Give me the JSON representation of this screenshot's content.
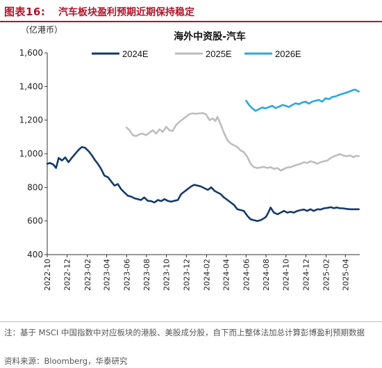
{
  "header": {
    "label": "图表16:",
    "title": "汽车板块盈利预期近期保持稳定"
  },
  "chart_data": {
    "type": "line",
    "title": "海外中资股-汽车",
    "ylabel": "（亿港币）",
    "ylim": [
      400,
      1600
    ],
    "yticks": [
      400,
      600,
      800,
      1000,
      1200,
      1400,
      1600
    ],
    "ytick_labels": [
      "400",
      "600",
      "800",
      "1,000",
      "1,200",
      "1,400",
      "1,600"
    ],
    "xlim": [
      "2022-10-01",
      "2025-05-15"
    ],
    "xticks": [
      "2022-10",
      "2022-12",
      "2023-02",
      "2023-04",
      "2023-06",
      "2023-08",
      "2023-10",
      "2023-12",
      "2024-02",
      "2024-04",
      "2024-06",
      "2024-08",
      "2024-10",
      "2024-12",
      "2025-02",
      "2025-04"
    ],
    "grid": false,
    "legend": "top",
    "series": [
      {
        "name": "2024E",
        "color": "#13386e",
        "x": [
          "2022-10-01",
          "2022-10-10",
          "2022-10-20",
          "2022-10-28",
          "2022-11-05",
          "2022-11-15",
          "2022-11-25",
          "2022-12-05",
          "2022-12-15",
          "2022-12-28",
          "2023-01-06",
          "2023-01-15",
          "2023-01-25",
          "2023-02-05",
          "2023-02-15",
          "2023-02-25",
          "2023-03-05",
          "2023-03-15",
          "2023-03-25",
          "2023-04-05",
          "2023-04-15",
          "2023-04-25",
          "2023-05-05",
          "2023-05-15",
          "2023-05-25",
          "2023-06-05",
          "2023-06-15",
          "2023-06-25",
          "2023-07-05",
          "2023-07-15",
          "2023-07-25",
          "2023-08-05",
          "2023-08-15",
          "2023-08-25",
          "2023-09-05",
          "2023-09-15",
          "2023-09-25",
          "2023-10-05",
          "2023-10-15",
          "2023-10-25",
          "2023-11-05",
          "2023-11-15",
          "2023-11-25",
          "2023-12-05",
          "2023-12-15",
          "2023-12-25",
          "2024-01-05",
          "2024-01-15",
          "2024-01-25",
          "2024-02-05",
          "2024-02-15",
          "2024-02-25",
          "2024-03-05",
          "2024-03-15",
          "2024-03-25",
          "2024-04-05",
          "2024-04-15",
          "2024-04-25",
          "2024-05-05",
          "2024-05-15",
          "2024-05-25",
          "2024-06-05",
          "2024-06-15",
          "2024-06-25",
          "2024-07-05",
          "2024-07-15",
          "2024-07-25",
          "2024-08-01",
          "2024-08-08",
          "2024-08-15",
          "2024-08-25",
          "2024-09-05",
          "2024-09-15",
          "2024-09-25",
          "2024-10-05",
          "2024-10-15",
          "2024-10-25",
          "2024-11-05",
          "2024-11-15",
          "2024-11-25",
          "2024-12-05",
          "2024-12-15",
          "2024-12-25",
          "2025-01-05",
          "2025-01-15",
          "2025-01-25",
          "2025-02-05",
          "2025-02-15",
          "2025-02-25",
          "2025-03-05",
          "2025-03-15",
          "2025-03-25",
          "2025-04-05",
          "2025-04-15",
          "2025-04-25",
          "2025-05-05",
          "2025-05-12"
        ],
        "values": [
          940,
          945,
          935,
          915,
          975,
          960,
          978,
          950,
          975,
          1005,
          1025,
          1040,
          1035,
          1015,
          990,
          960,
          940,
          910,
          870,
          860,
          835,
          810,
          820,
          790,
          770,
          750,
          745,
          735,
          730,
          725,
          740,
          720,
          718,
          710,
          725,
          718,
          730,
          720,
          715,
          720,
          725,
          760,
          775,
          790,
          805,
          815,
          810,
          805,
          795,
          785,
          800,
          780,
          770,
          760,
          740,
          725,
          710,
          695,
          670,
          665,
          660,
          630,
          610,
          605,
          600,
          605,
          615,
          625,
          650,
          680,
          650,
          640,
          650,
          660,
          650,
          655,
          650,
          660,
          665,
          668,
          660,
          670,
          660,
          670,
          668,
          675,
          678,
          682,
          676,
          680,
          676,
          675,
          672,
          670,
          670,
          670,
          670
        ]
      },
      {
        "name": "2025E",
        "color": "#bdbdbd",
        "x": [
          "2023-06-01",
          "2023-06-10",
          "2023-06-20",
          "2023-06-30",
          "2023-07-10",
          "2023-07-20",
          "2023-07-30",
          "2023-08-10",
          "2023-08-20",
          "2023-08-30",
          "2023-09-10",
          "2023-09-20",
          "2023-09-30",
          "2023-10-10",
          "2023-10-20",
          "2023-10-30",
          "2023-11-10",
          "2023-11-20",
          "2023-11-30",
          "2023-12-10",
          "2023-12-20",
          "2023-12-30",
          "2024-01-10",
          "2024-01-20",
          "2024-01-30",
          "2024-02-10",
          "2024-02-20",
          "2024-02-28",
          "2024-03-05",
          "2024-03-15",
          "2024-03-25",
          "2024-04-05",
          "2024-04-15",
          "2024-04-25",
          "2024-05-05",
          "2024-05-15",
          "2024-05-25",
          "2024-06-05",
          "2024-06-15",
          "2024-06-25",
          "2024-07-05",
          "2024-07-15",
          "2024-07-25",
          "2024-08-05",
          "2024-08-15",
          "2024-08-25",
          "2024-09-05",
          "2024-09-15",
          "2024-09-25",
          "2024-10-05",
          "2024-10-15",
          "2024-10-25",
          "2024-11-05",
          "2024-11-15",
          "2024-11-25",
          "2024-12-05",
          "2024-12-15",
          "2024-12-25",
          "2025-01-05",
          "2025-01-15",
          "2025-01-25",
          "2025-02-05",
          "2025-02-15",
          "2025-02-25",
          "2025-03-05",
          "2025-03-15",
          "2025-03-25",
          "2025-04-05",
          "2025-04-15",
          "2025-04-25",
          "2025-05-05",
          "2025-05-12"
        ],
        "values": [
          1155,
          1140,
          1110,
          1105,
          1115,
          1120,
          1110,
          1125,
          1140,
          1120,
          1145,
          1130,
          1160,
          1140,
          1135,
          1170,
          1190,
          1205,
          1220,
          1235,
          1240,
          1238,
          1240,
          1242,
          1235,
          1200,
          1210,
          1195,
          1220,
          1175,
          1125,
          1080,
          1060,
          1050,
          1040,
          1020,
          1010,
          980,
          940,
          920,
          915,
          918,
          922,
          915,
          920,
          910,
          915,
          900,
          910,
          918,
          920,
          928,
          935,
          940,
          950,
          945,
          955,
          950,
          940,
          950,
          955,
          960,
          975,
          985,
          990,
          998,
          990,
          985,
          990,
          980,
          988,
          985
        ]
      },
      {
        "name": "2026E",
        "color": "#27a9e1",
        "x": [
          "2024-06-01",
          "2024-06-10",
          "2024-06-20",
          "2024-06-30",
          "2024-07-10",
          "2024-07-20",
          "2024-07-30",
          "2024-08-10",
          "2024-08-20",
          "2024-08-30",
          "2024-09-10",
          "2024-09-20",
          "2024-09-30",
          "2024-10-10",
          "2024-10-20",
          "2024-10-30",
          "2024-11-10",
          "2024-11-20",
          "2024-11-30",
          "2024-12-10",
          "2024-12-20",
          "2024-12-30",
          "2025-01-10",
          "2025-01-20",
          "2025-01-30",
          "2025-02-10",
          "2025-02-20",
          "2025-02-28",
          "2025-03-10",
          "2025-03-20",
          "2025-03-30",
          "2025-04-10",
          "2025-04-20",
          "2025-04-30",
          "2025-05-07",
          "2025-05-12"
        ],
        "values": [
          1315,
          1290,
          1270,
          1255,
          1265,
          1275,
          1270,
          1278,
          1285,
          1272,
          1280,
          1290,
          1285,
          1278,
          1290,
          1300,
          1295,
          1305,
          1310,
          1298,
          1310,
          1315,
          1320,
          1310,
          1330,
          1325,
          1338,
          1340,
          1348,
          1355,
          1360,
          1368,
          1375,
          1382,
          1375,
          1370
        ]
      }
    ]
  },
  "footer": {
    "note": "注：基于 MSCI 中国指数中对应板块的港股、美股成分股，自下而上整体法加总计算彭博盈利预期数据",
    "source": "资料来源：Bloomberg，华泰研究"
  }
}
